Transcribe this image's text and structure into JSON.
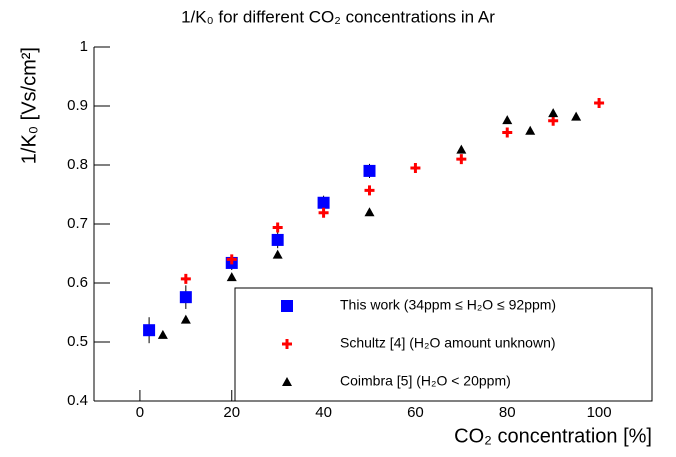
{
  "chart_data": {
    "type": "scatter",
    "title": "1/K₀ for different CO₂ concentrations in Ar",
    "x_label": "CO₂ concentration [%]",
    "y_label": "1/K₀ [Vs/cm²]",
    "xlim": [
      -10,
      110
    ],
    "xticks": [
      0,
      20,
      40,
      60,
      80,
      100
    ],
    "ylim": [
      0.4,
      1
    ],
    "yticks": [
      0.4,
      0.5,
      0.6,
      0.7,
      0.8,
      0.9,
      1
    ],
    "legend": "lower right",
    "series": [
      {
        "name": "This work (34ppm ≤ H₂O ≤ 92ppm)",
        "color": "#0000ff",
        "marker": "square",
        "x": [
          2,
          10,
          20,
          30,
          40,
          50
        ],
        "values": [
          0.52,
          0.576,
          0.634,
          0.673,
          0.736,
          0.79
        ],
        "errors": [
          0.022,
          0.02,
          0.012,
          0.014,
          0.012,
          0.012
        ]
      },
      {
        "name": "Schultz [4] (H₂O amount unknown)",
        "color": "#ff0000",
        "marker": "cross",
        "x": [
          10,
          20,
          30,
          40,
          50,
          60,
          70,
          80,
          90,
          100
        ],
        "values": [
          0.607,
          0.64,
          0.694,
          0.719,
          0.757,
          0.795,
          0.81,
          0.855,
          0.875,
          0.905
        ]
      },
      {
        "name": "Coimbra [5] (H₂O < 20ppm)",
        "color": "#000000",
        "marker": "triangle",
        "x": [
          5,
          10,
          20,
          30,
          50,
          70,
          80,
          85,
          90,
          95
        ],
        "values": [
          0.512,
          0.538,
          0.61,
          0.648,
          0.72,
          0.826,
          0.876,
          0.858,
          0.888,
          0.882
        ]
      }
    ]
  }
}
